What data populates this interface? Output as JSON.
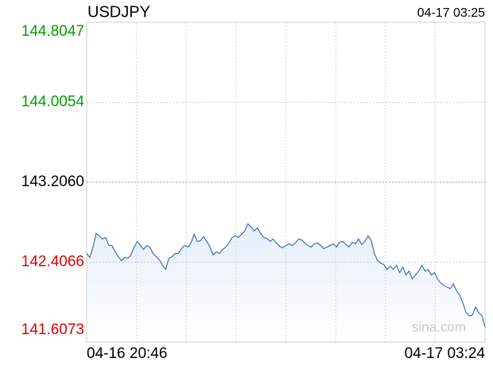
{
  "chart_data": {
    "type": "line",
    "title": "USDJPY",
    "timestamp": "04-17 03:25",
    "watermark": "sina.com",
    "categories": [
      "04-16 20:46",
      null,
      null,
      null,
      null,
      null,
      null,
      null,
      null,
      null,
      null,
      null,
      null,
      null,
      null,
      null,
      null,
      null,
      null,
      null,
      null,
      null,
      null,
      null,
      null,
      null,
      null,
      null,
      null,
      null,
      null,
      null,
      null,
      null,
      null,
      null,
      null,
      null,
      null,
      null,
      null,
      null,
      null,
      null,
      null,
      null,
      null,
      null,
      null,
      null,
      null,
      null,
      null,
      null,
      null,
      null,
      null,
      null,
      null,
      null,
      null,
      null,
      null,
      null,
      null,
      null,
      null,
      null,
      null,
      null,
      null,
      null,
      null,
      null,
      null,
      null,
      null,
      null,
      null,
      null,
      null,
      null,
      null,
      null,
      null,
      null,
      null,
      null,
      null,
      null,
      null,
      null,
      null,
      null,
      null,
      null,
      null,
      null,
      null,
      null,
      null,
      null,
      null,
      null,
      null,
      null,
      null,
      null,
      null,
      null,
      null,
      null,
      null,
      null,
      null,
      null,
      null,
      null,
      null,
      null,
      null,
      null,
      null,
      null,
      null,
      null,
      "04-17 03:24"
    ],
    "series": [
      {
        "name": "USDJPY",
        "color": "#3f6fb6",
        "values": [
          142.494,
          142.454,
          142.558,
          142.694,
          142.67,
          142.638,
          142.654,
          142.574,
          142.574,
          142.51,
          142.462,
          142.422,
          142.454,
          142.446,
          142.478,
          142.558,
          142.614,
          142.574,
          142.534,
          142.574,
          142.558,
          142.494,
          142.462,
          142.43,
          142.374,
          142.334,
          142.446,
          142.462,
          142.494,
          142.494,
          142.542,
          142.574,
          142.558,
          142.598,
          142.686,
          142.614,
          142.622,
          142.662,
          142.614,
          142.558,
          142.478,
          142.51,
          142.494,
          142.534,
          142.558,
          142.598,
          142.654,
          142.67,
          142.654,
          142.686,
          142.718,
          142.79,
          142.758,
          142.718,
          142.75,
          142.694,
          142.654,
          142.646,
          142.614,
          142.638,
          142.598,
          142.566,
          142.55,
          142.574,
          142.59,
          142.574,
          142.598,
          142.638,
          142.63,
          142.598,
          142.574,
          142.558,
          142.59,
          142.598,
          142.574,
          142.542,
          142.558,
          142.574,
          142.59,
          142.558,
          142.606,
          142.614,
          142.582,
          142.558,
          142.606,
          142.59,
          142.638,
          142.582,
          142.614,
          142.67,
          142.622,
          142.494,
          142.422,
          142.398,
          142.382,
          142.334,
          142.366,
          142.334,
          142.374,
          142.302,
          142.358,
          142.278,
          142.318,
          142.238,
          142.278,
          142.318,
          142.374,
          142.318,
          142.334,
          142.278,
          142.302,
          142.238,
          142.198,
          142.174,
          142.158,
          142.142,
          142.19,
          142.118,
          142.078,
          141.998,
          141.902,
          141.87,
          141.878,
          141.958,
          141.902,
          141.87,
          141.758
        ]
      }
    ],
    "ylim": [
      141.6073,
      144.8047
    ],
    "yticks": [
      141.6073,
      142.4066,
      {
        "value": 143.206,
        "label": "143.2060"
      },
      144.0054,
      144.8047
    ],
    "up_color": "#00a000",
    "down_color": "#e00000",
    "grid": true
  }
}
